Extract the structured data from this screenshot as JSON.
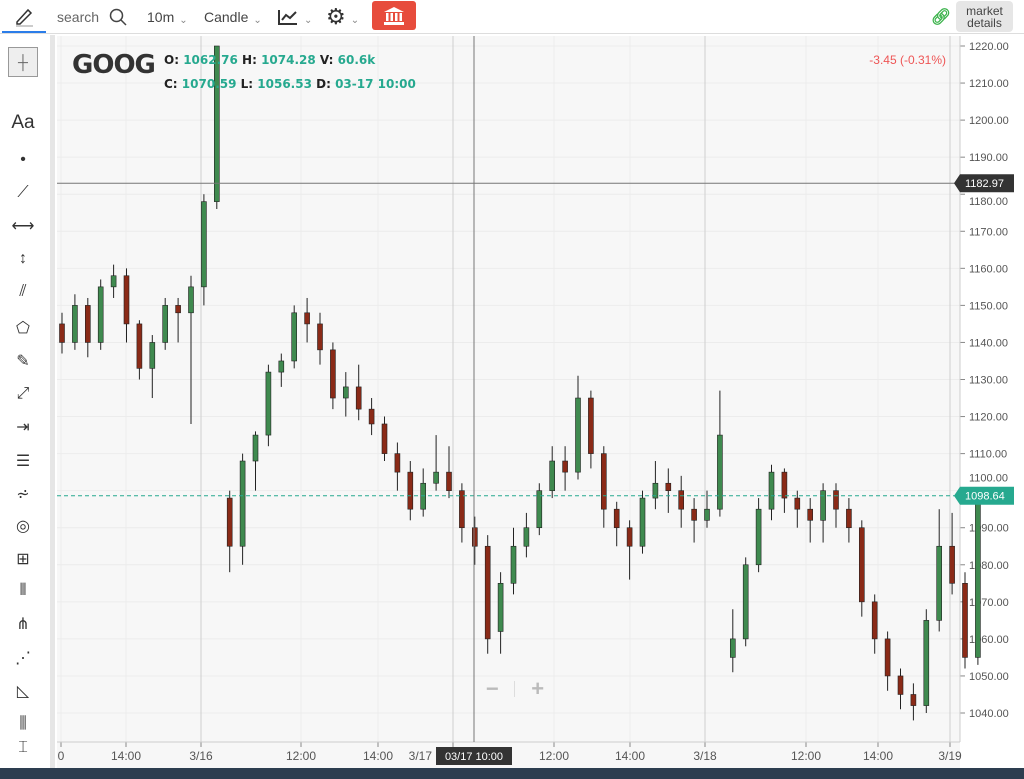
{
  "toolbar": {
    "search_label": "search",
    "interval": "10m",
    "chart_type": "Candle",
    "market_details": "market details",
    "icons": [
      "pencil-icon",
      "search-icon",
      "line-chart-icon",
      "gear-icon",
      "bank-icon",
      "link-icon"
    ]
  },
  "left_tools": [
    "crosshair-icon",
    "text-icon",
    "trend-line-icon",
    "horizontal-line-icon",
    "vertical-line-icon",
    "parallel-channel-icon",
    "polyline-icon",
    "brush-icon",
    "ray-icon",
    "measure-icon",
    "horizontal-lines-icon",
    "fib-fan-icon",
    "circles-icon",
    "gann-box-icon",
    "vertical-lines-icon",
    "pitchfork-icon",
    "speed-lines-icon",
    "triangle-icon",
    "cycle-lines-icon",
    "price-range-icon"
  ],
  "left_text_tool": "Aa",
  "legend": {
    "symbol": "GOOG",
    "o_label": "O:",
    "o": "1062.76",
    "h_label": "H:",
    "h": "1074.28",
    "v_label": "V:",
    "v": "60.6k",
    "c_label": "C:",
    "c": "1070.59",
    "l_label": "L:",
    "l": "1056.53",
    "d_label": "D:",
    "d": "03-17 10:00"
  },
  "change": "-3.45 (-0.31%)",
  "crosshair": {
    "price": "1182.97",
    "time": "03/17 10:00"
  },
  "last_price": "1098.64",
  "colors": {
    "up": "#3f8a4f",
    "down": "#8a2a17",
    "accent": "#26a98f",
    "change": "#e55555",
    "bank": "#e74c3c"
  },
  "zoom_controls": {
    "minus": "−",
    "plus": "+"
  },
  "chart_data": {
    "type": "candlestick",
    "ylim": [
      1036,
      1222
    ],
    "yticks": [
      "1040.00",
      "1050.00",
      "1060.00",
      "1070.00",
      "1080.00",
      "1090.00",
      "1100.00",
      "1110.00",
      "1120.00",
      "1130.00",
      "1140.00",
      "1150.00",
      "1160.00",
      "1170.00",
      "1180.00",
      "1190.00",
      "1200.00",
      "1210.00",
      "1220.00"
    ],
    "xticks": [
      "0",
      "14:00",
      "3/16",
      "12:00",
      "14:00",
      "3/17",
      "12:00",
      "14:00",
      "3/18",
      "12:00",
      "14:00",
      "3/19"
    ],
    "candles": [
      [
        1145,
        1148,
        1137,
        1140
      ],
      [
        1140,
        1153,
        1138,
        1150
      ],
      [
        1150,
        1152,
        1136,
        1140
      ],
      [
        1140,
        1157,
        1138,
        1155
      ],
      [
        1155,
        1161,
        1152,
        1158
      ],
      [
        1158,
        1160,
        1140,
        1145
      ],
      [
        1145,
        1146,
        1130,
        1133
      ],
      [
        1133,
        1142,
        1125,
        1140
      ],
      [
        1140,
        1152,
        1138,
        1150
      ],
      [
        1150,
        1152,
        1140,
        1148
      ],
      [
        1148,
        1158,
        1118,
        1155
      ],
      [
        1155,
        1180,
        1150,
        1178
      ],
      [
        1178,
        1220,
        1176,
        1220
      ],
      [
        1098,
        1100,
        1078,
        1085
      ],
      [
        1085,
        1110,
        1080,
        1108
      ],
      [
        1108,
        1116,
        1100,
        1115
      ],
      [
        1115,
        1134,
        1112,
        1132
      ],
      [
        1132,
        1137,
        1128,
        1135
      ],
      [
        1135,
        1150,
        1133,
        1148
      ],
      [
        1148,
        1152,
        1140,
        1145
      ],
      [
        1145,
        1148,
        1134,
        1138
      ],
      [
        1138,
        1140,
        1122,
        1125
      ],
      [
        1125,
        1132,
        1120,
        1128
      ],
      [
        1128,
        1134,
        1119,
        1122
      ],
      [
        1122,
        1125,
        1115,
        1118
      ],
      [
        1118,
        1120,
        1108,
        1110
      ],
      [
        1110,
        1113,
        1100,
        1105
      ],
      [
        1105,
        1108,
        1092,
        1095
      ],
      [
        1095,
        1106,
        1093,
        1102
      ],
      [
        1102,
        1115,
        1100,
        1105
      ],
      [
        1105,
        1112,
        1098,
        1100
      ],
      [
        1100,
        1102,
        1086,
        1090
      ],
      [
        1090,
        1093,
        1080,
        1085
      ],
      [
        1085,
        1088,
        1056,
        1060
      ],
      [
        1062,
        1078,
        1056,
        1075
      ],
      [
        1075,
        1090,
        1072,
        1085
      ],
      [
        1085,
        1094,
        1082,
        1090
      ],
      [
        1090,
        1102,
        1088,
        1100
      ],
      [
        1100,
        1112,
        1098,
        1108
      ],
      [
        1108,
        1112,
        1100,
        1105
      ],
      [
        1105,
        1131,
        1103,
        1125
      ],
      [
        1125,
        1127,
        1106,
        1110
      ],
      [
        1110,
        1112,
        1090,
        1095
      ],
      [
        1095,
        1097,
        1085,
        1090
      ],
      [
        1090,
        1092,
        1076,
        1085
      ],
      [
        1085,
        1100,
        1083,
        1098
      ],
      [
        1098,
        1108,
        1095,
        1102
      ],
      [
        1102,
        1106,
        1094,
        1100
      ],
      [
        1100,
        1104,
        1090,
        1095
      ],
      [
        1095,
        1098,
        1086,
        1092
      ],
      [
        1092,
        1100,
        1090,
        1095
      ],
      [
        1095,
        1127,
        1093,
        1115
      ],
      [
        1055,
        1068,
        1051,
        1060
      ],
      [
        1060,
        1082,
        1058,
        1080
      ],
      [
        1080,
        1098,
        1078,
        1095
      ],
      [
        1095,
        1107,
        1092,
        1105
      ],
      [
        1105,
        1106,
        1094,
        1098
      ],
      [
        1098,
        1100,
        1090,
        1095
      ],
      [
        1095,
        1098,
        1086,
        1092
      ],
      [
        1092,
        1102,
        1086,
        1100
      ],
      [
        1100,
        1102,
        1090,
        1095
      ],
      [
        1095,
        1098,
        1086,
        1090
      ],
      [
        1090,
        1092,
        1066,
        1070
      ],
      [
        1070,
        1072,
        1056,
        1060
      ],
      [
        1060,
        1062,
        1046,
        1050
      ],
      [
        1050,
        1052,
        1041,
        1045
      ],
      [
        1045,
        1048,
        1038,
        1042
      ],
      [
        1042,
        1068,
        1040,
        1065
      ],
      [
        1065,
        1095,
        1062,
        1085
      ],
      [
        1085,
        1094,
        1072,
        1075
      ],
      [
        1075,
        1078,
        1052,
        1055
      ],
      [
        1055,
        1100,
        1053,
        1098.64
      ]
    ]
  }
}
